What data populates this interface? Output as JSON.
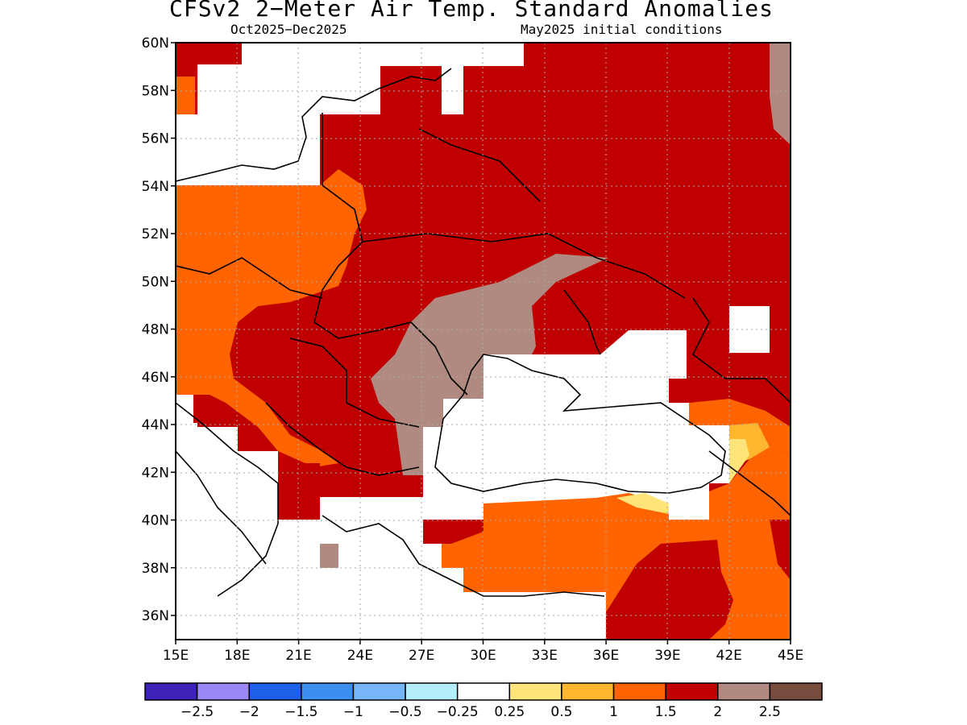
{
  "title": "CFSv2 2−Meter Air Temp. Standard Anomalies",
  "period": "Oct2025−Dec2025",
  "initial_conditions": "May2025 initial conditions",
  "axes": {
    "x_ticks": [
      "15E",
      "18E",
      "21E",
      "24E",
      "27E",
      "30E",
      "33E",
      "36E",
      "39E",
      "42E",
      "45E"
    ],
    "y_ticks": [
      "36N",
      "38N",
      "40N",
      "42N",
      "44N",
      "46N",
      "48N",
      "50N",
      "52N",
      "54N",
      "56N",
      "58N",
      "60N"
    ]
  },
  "colorbar": {
    "colors": [
      "#3e22b8",
      "#9b87f5",
      "#1e5fe8",
      "#3a8ff0",
      "#78b4f8",
      "#b4eefa",
      "#ffffff",
      "#ffe47a",
      "#ffb730",
      "#ff6400",
      "#c00000",
      "#b08a80",
      "#764c3e"
    ],
    "labels": [
      "−2.5",
      "−2",
      "−1.5",
      "−1",
      "−0.5",
      "−0.25",
      "0.25",
      "0.5",
      "1",
      "1.5",
      "2",
      "2.5"
    ]
  },
  "regions": {
    "orange": "#ff6400",
    "dark_red": "#c00000",
    "brown": "#b08a80",
    "yellow": "#ffe47a",
    "light_orange": "#ffb730"
  }
}
